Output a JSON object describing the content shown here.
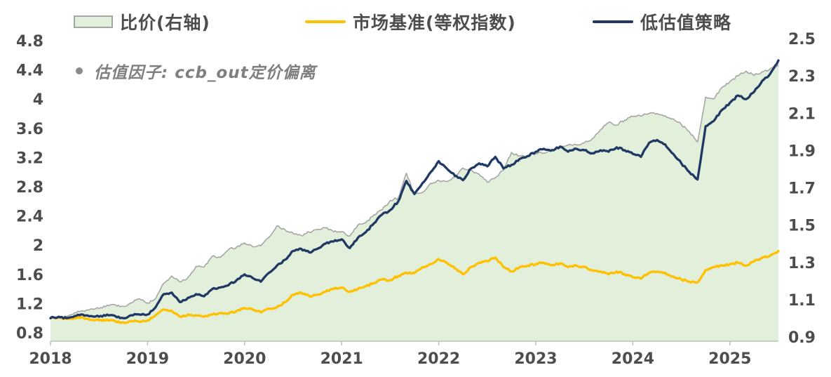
{
  "legend": [
    {
      "label": "比价(右轴)",
      "type": "area",
      "fill": "#e2efda",
      "border": "#a6a6a6"
    },
    {
      "label": "市场基准(等权指数)",
      "type": "line",
      "color": "#ffc000"
    },
    {
      "label": "低估值策略",
      "type": "line",
      "color": "#1f3864"
    }
  ],
  "annotation": {
    "bullet": "•",
    "text": "估值因子: ccb_out定价偏离"
  },
  "colors": {
    "area_fill": "#e2efda",
    "area_border": "#a6a6a6",
    "benchmark": "#ffc000",
    "strategy": "#1f3864",
    "axis_line": "#bfbfbf",
    "tick_text": "#4d4d4d",
    "annotation_text": "#7f7f7f"
  },
  "chart_data": {
    "type": "line",
    "title": "",
    "x_unit": "month",
    "x_range": [
      2018.0,
      2025.5
    ],
    "x_axis": {
      "min": 2018.0,
      "max": 2025.5,
      "ticks": [
        2018,
        2019,
        2020,
        2021,
        2022,
        2023,
        2024,
        2025
      ],
      "labels": [
        "2018",
        "2019",
        "2020",
        "2021",
        "2022",
        "2023",
        "2024",
        "2025"
      ]
    },
    "left_axis": {
      "min": 0.8,
      "max": 4.8,
      "ticks": [
        4.8,
        4.4,
        4.0,
        3.6,
        3.2,
        2.8,
        2.4,
        2.0,
        1.6,
        1.2,
        0.8
      ],
      "labels": [
        "4.8",
        "4.4",
        "4",
        "3.6",
        "3.2",
        "2.8",
        "2.4",
        "2",
        "1.6",
        "1.2",
        "0.8"
      ]
    },
    "right_axis": {
      "min": 0.9,
      "max": 2.5,
      "ticks": [
        2.5,
        2.3,
        2.1,
        1.9,
        1.7,
        1.5,
        1.3,
        1.1,
        0.9
      ],
      "labels": [
        "2.5",
        "2.3",
        "2.1",
        "1.9",
        "1.7",
        "1.5",
        "1.3",
        "1.1",
        "0.9"
      ]
    },
    "grid": false,
    "legend_position": "top",
    "series": [
      {
        "name": "比价(右轴)",
        "axis": "right",
        "style": "area",
        "fill": "#e2efda",
        "stroke": "#a6a6a6",
        "values": [
          1.0,
          1.01,
          1.01,
          1.03,
          1.04,
          1.051,
          1.052,
          1.071,
          1.073,
          1.064,
          1.083,
          1.105,
          1.082,
          1.106,
          1.188,
          1.227,
          1.196,
          1.219,
          1.279,
          1.275,
          1.333,
          1.327,
          1.368,
          1.382,
          1.404,
          1.384,
          1.389,
          1.434,
          1.496,
          1.475,
          1.455,
          1.444,
          1.462,
          1.477,
          1.485,
          1.464,
          1.465,
          1.441,
          1.5,
          1.514,
          1.554,
          1.582,
          1.632,
          1.646,
          1.778,
          1.667,
          1.676,
          1.724,
          1.74,
          1.733,
          1.756,
          1.806,
          1.794,
          1.773,
          1.73,
          1.754,
          1.794,
          1.89,
          1.871,
          1.872,
          1.885,
          1.886,
          1.908,
          1.914,
          1.929,
          1.93,
          1.941,
          1.964,
          2.012,
          2.05,
          2.037,
          2.063,
          2.083,
          2.084,
          2.099,
          2.098,
          2.086,
          2.07,
          2.039,
          2.0,
          1.946,
          2.187,
          2.176,
          2.238,
          2.27,
          2.301,
          2.326,
          2.303,
          2.322,
          2.339,
          2.359
        ]
      },
      {
        "name": "市场基准(等权指数)",
        "axis": "left",
        "style": "line",
        "stroke": "#ffc000",
        "values": [
          1.0,
          1.01,
          0.99,
          1.0,
          1.01,
          0.98,
          0.97,
          0.98,
          0.96,
          0.94,
          0.96,
          0.95,
          0.97,
          1.04,
          1.12,
          1.1,
          1.02,
          1.05,
          1.04,
          1.02,
          1.05,
          1.07,
          1.06,
          1.1,
          1.14,
          1.12,
          1.08,
          1.13,
          1.15,
          1.22,
          1.32,
          1.35,
          1.3,
          1.32,
          1.36,
          1.4,
          1.42,
          1.36,
          1.4,
          1.44,
          1.48,
          1.53,
          1.52,
          1.58,
          1.62,
          1.62,
          1.7,
          1.74,
          1.81,
          1.76,
          1.68,
          1.6,
          1.7,
          1.76,
          1.78,
          1.83,
          1.7,
          1.64,
          1.7,
          1.72,
          1.74,
          1.76,
          1.73,
          1.75,
          1.7,
          1.72,
          1.7,
          1.66,
          1.64,
          1.6,
          1.64,
          1.6,
          1.56,
          1.54,
          1.62,
          1.64,
          1.62,
          1.57,
          1.53,
          1.5,
          1.49,
          1.66,
          1.7,
          1.72,
          1.74,
          1.76,
          1.72,
          1.78,
          1.83,
          1.86,
          1.92
        ]
      },
      {
        "name": "低估值策略",
        "axis": "left",
        "style": "line",
        "stroke": "#1f3864",
        "values": [
          1.0,
          1.02,
          1.0,
          1.03,
          1.05,
          1.03,
          1.02,
          1.05,
          1.03,
          1.0,
          1.04,
          1.05,
          1.05,
          1.15,
          1.33,
          1.35,
          1.22,
          1.28,
          1.33,
          1.3,
          1.4,
          1.42,
          1.45,
          1.52,
          1.6,
          1.55,
          1.5,
          1.62,
          1.72,
          1.8,
          1.92,
          1.95,
          1.9,
          1.95,
          2.02,
          2.05,
          2.08,
          1.96,
          2.1,
          2.18,
          2.3,
          2.42,
          2.48,
          2.6,
          2.88,
          2.7,
          2.85,
          3.0,
          3.15,
          3.05,
          2.95,
          2.89,
          3.05,
          3.12,
          3.08,
          3.21,
          3.05,
          3.1,
          3.18,
          3.22,
          3.28,
          3.32,
          3.3,
          3.35,
          3.28,
          3.32,
          3.3,
          3.26,
          3.3,
          3.28,
          3.34,
          3.3,
          3.25,
          3.21,
          3.4,
          3.44,
          3.38,
          3.25,
          3.12,
          3.0,
          2.9,
          3.63,
          3.7,
          3.85,
          3.95,
          4.05,
          4.0,
          4.1,
          4.25,
          4.35,
          4.53
        ]
      }
    ]
  }
}
